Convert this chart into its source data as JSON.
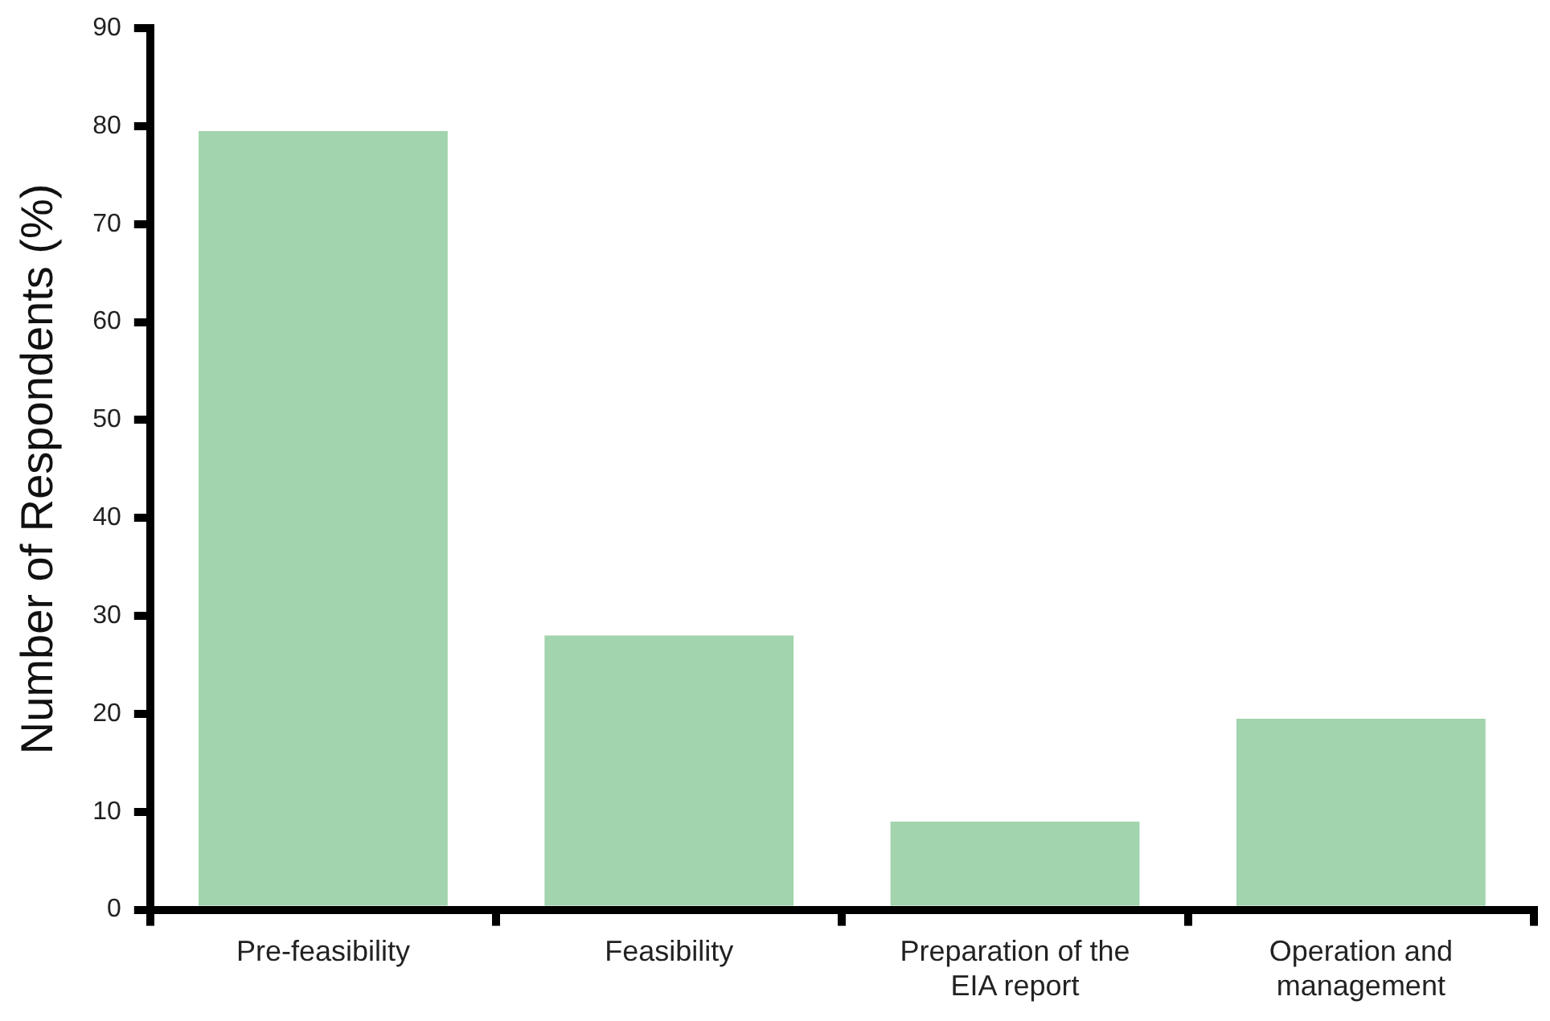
{
  "chart_data": {
    "type": "bar",
    "ylabel": "Number of Respondents (%)",
    "categories": [
      "Pre-feasibility",
      "Feasibility",
      "Preparation of the EIA report",
      "Operation and management"
    ],
    "values": [
      79.5,
      28,
      9,
      19.5
    ],
    "color": "#a2d4ad",
    "ylim": [
      0,
      90
    ],
    "yticks": [
      0,
      10,
      20,
      30,
      40,
      50,
      60,
      70,
      80,
      90
    ],
    "grid": false,
    "legend": false
  }
}
